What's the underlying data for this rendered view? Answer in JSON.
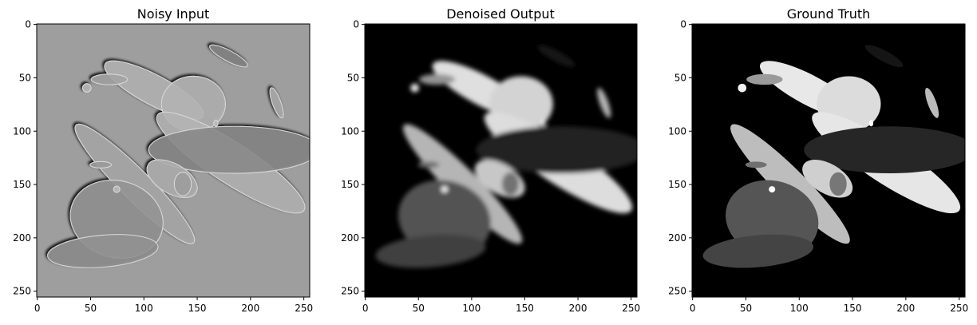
{
  "figure": {
    "panels": [
      {
        "title": "Noisy Input",
        "background": "#9e9e9e",
        "style": "embossed",
        "x_ticks": [
          "0",
          "50",
          "100",
          "150",
          "200",
          "250"
        ],
        "y_ticks": [
          "0",
          "50",
          "100",
          "150",
          "200",
          "250"
        ],
        "extent": [
          0,
          256
        ]
      },
      {
        "title": "Denoised Output",
        "background": "#000000",
        "style": "soft",
        "x_ticks": [
          "0",
          "50",
          "100",
          "150",
          "200",
          "250"
        ],
        "y_ticks": [
          "0",
          "50",
          "100",
          "150",
          "200",
          "250"
        ],
        "extent": [
          0,
          256
        ]
      },
      {
        "title": "Ground Truth",
        "background": "#000000",
        "style": "flat",
        "x_ticks": [
          "0",
          "50",
          "100",
          "150",
          "200",
          "250"
        ],
        "y_ticks": [
          "0",
          "50",
          "100",
          "150",
          "200",
          "250"
        ],
        "extent": [
          0,
          256
        ]
      }
    ],
    "ellipses": [
      {
        "cx": 110,
        "cy": 62,
        "rx": 52,
        "ry": 14,
        "angle": 28,
        "shade": "#e8e8e8"
      },
      {
        "cx": 147,
        "cy": 75,
        "rx": 30,
        "ry": 26,
        "angle": 0,
        "shade": "#dcdcdc"
      },
      {
        "cx": 182,
        "cy": 130,
        "rx": 82,
        "ry": 19,
        "angle": 33,
        "shade": "#e6e6e6"
      },
      {
        "cx": 92,
        "cy": 150,
        "rx": 78,
        "ry": 14,
        "angle": 45,
        "shade": "#bdbdbd"
      },
      {
        "cx": 185,
        "cy": 118,
        "rx": 80,
        "ry": 22,
        "angle": 0,
        "shade": "#262626"
      },
      {
        "cx": 75,
        "cy": 183,
        "rx": 44,
        "ry": 36,
        "angle": 15,
        "shade": "#555555"
      },
      {
        "cx": 62,
        "cy": 213,
        "rx": 52,
        "ry": 15,
        "angle": -5,
        "shade": "#444444"
      },
      {
        "cx": 127,
        "cy": 145,
        "rx": 26,
        "ry": 14,
        "angle": 30,
        "shade": "#cfcfcf"
      },
      {
        "cx": 225,
        "cy": 74,
        "rx": 4,
        "ry": 15,
        "angle": -20,
        "shade": "#bbbbbb"
      },
      {
        "cx": 180,
        "cy": 30,
        "rx": 20,
        "ry": 5,
        "angle": 28,
        "shade": "#151515"
      },
      {
        "cx": 137,
        "cy": 150,
        "rx": 8,
        "ry": 11,
        "angle": 0,
        "shade": "#777777"
      },
      {
        "cx": 68,
        "cy": 52,
        "rx": 17,
        "ry": 5,
        "angle": 0,
        "shade": "#9a9a9a"
      },
      {
        "cx": 47,
        "cy": 60,
        "rx": 4,
        "ry": 4,
        "angle": 0,
        "shade": "#f2f2f2"
      },
      {
        "cx": 75,
        "cy": 155,
        "rx": 3,
        "ry": 3,
        "angle": 0,
        "shade": "#ffffff"
      },
      {
        "cx": 168,
        "cy": 93,
        "rx": 2,
        "ry": 3,
        "angle": 0,
        "shade": "#ffffff"
      },
      {
        "cx": 60,
        "cy": 132,
        "rx": 10,
        "ry": 3,
        "angle": 0,
        "shade": "#707070"
      }
    ]
  }
}
